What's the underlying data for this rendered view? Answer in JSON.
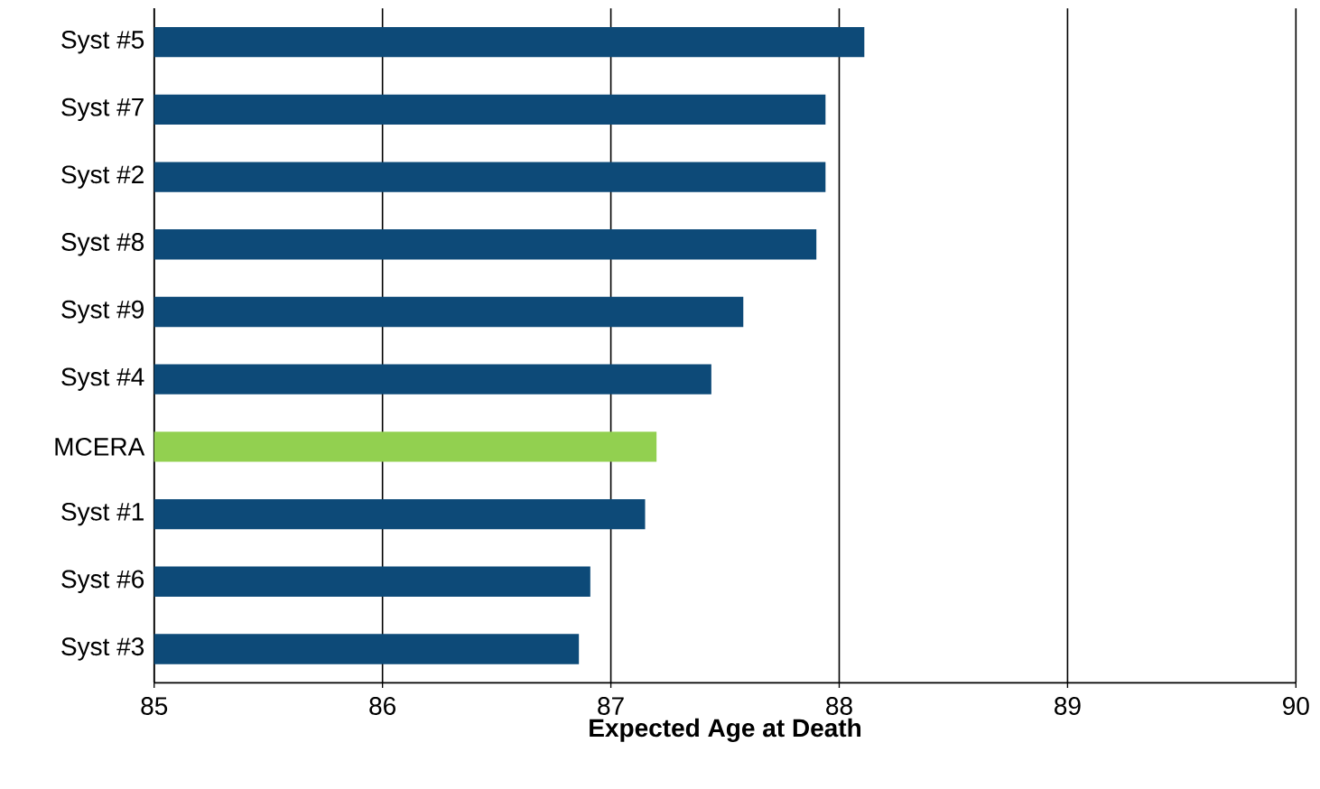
{
  "chart_data": {
    "type": "bar",
    "orientation": "horizontal",
    "xlabel": "Expected Age at Death",
    "categories": [
      "Syst #5",
      "Syst #7",
      "Syst #2",
      "Syst #8",
      "Syst #9",
      "Syst #4",
      "MCERA",
      "Syst #1",
      "Syst #6",
      "Syst #3"
    ],
    "values": [
      88.11,
      87.94,
      87.94,
      87.9,
      87.58,
      87.44,
      87.2,
      87.15,
      86.91,
      86.86
    ],
    "colors": [
      "#0d4a78",
      "#0d4a78",
      "#0d4a78",
      "#0d4a78",
      "#0d4a78",
      "#0d4a78",
      "#92d050",
      "#0d4a78",
      "#0d4a78",
      "#0d4a78"
    ],
    "xlim": [
      85,
      90
    ],
    "xticks": [
      85,
      86,
      87,
      88,
      89,
      90
    ],
    "grid": "x"
  }
}
